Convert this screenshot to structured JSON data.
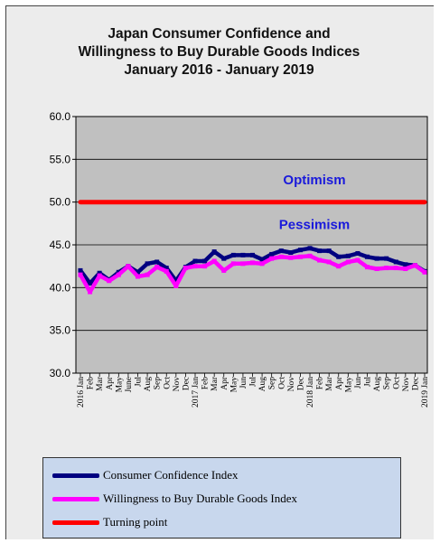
{
  "chart_data": {
    "type": "line",
    "title": [
      "Japan Consumer Confidence and",
      "Willingness to Buy Durable Goods Indices",
      "January 2016 - January 2019"
    ],
    "ylim": [
      30,
      60
    ],
    "yticks": [
      "30.0",
      "35.0",
      "40.0",
      "45.0",
      "50.0",
      "55.0",
      "60.0"
    ],
    "grid": true,
    "legend_position": "bottom",
    "x": [
      "2016 Jan",
      "Feb",
      "Mar",
      "Apr",
      "May",
      "June",
      "Jul",
      "Aug",
      "Sep",
      "Oct",
      "Nov",
      "Dec",
      "2017 Jan",
      "Feb",
      "Mar",
      "Apr",
      "May",
      "Jun",
      "Jul",
      "Aug",
      "Sep",
      "Oct",
      "Nov",
      "Dec",
      "2018 Jan",
      "Feb",
      "Mar",
      "Apr",
      "May",
      "Jun",
      "Jul",
      "Aug",
      "Sep",
      "Oct",
      "Nov",
      "Dec",
      "2019 Jan"
    ],
    "series": [
      {
        "name": "Consumer Confidence Index",
        "color": "#000080",
        "values": [
          42.0,
          40.5,
          41.7,
          40.9,
          41.8,
          42.5,
          41.8,
          42.8,
          43.0,
          42.3,
          40.8,
          42.4,
          43.1,
          43.1,
          44.2,
          43.4,
          43.8,
          43.8,
          43.8,
          43.3,
          43.9,
          44.3,
          44.1,
          44.4,
          44.6,
          44.3,
          44.3,
          43.6,
          43.7,
          44.0,
          43.6,
          43.4,
          43.4,
          43.0,
          42.7,
          42.6,
          41.9
        ]
      },
      {
        "name": "Willingness to Buy Durable Goods Index",
        "color": "#ff00ff",
        "values": [
          41.5,
          39.5,
          41.4,
          40.8,
          41.5,
          42.5,
          41.3,
          41.5,
          42.4,
          41.9,
          40.2,
          42.3,
          42.5,
          42.5,
          43.1,
          42.0,
          42.8,
          42.8,
          42.9,
          42.8,
          43.4,
          43.6,
          43.5,
          43.6,
          43.7,
          43.2,
          43.0,
          42.5,
          43.0,
          43.2,
          42.4,
          42.2,
          42.3,
          42.3,
          42.2,
          42.6,
          41.8
        ]
      },
      {
        "name": "Turning point",
        "color": "#ff0000",
        "values": [
          50,
          50,
          50,
          50,
          50,
          50,
          50,
          50,
          50,
          50,
          50,
          50,
          50,
          50,
          50,
          50,
          50,
          50,
          50,
          50,
          50,
          50,
          50,
          50,
          50,
          50,
          50,
          50,
          50,
          50,
          50,
          50,
          50,
          50,
          50,
          50,
          50
        ]
      }
    ],
    "annotations": [
      {
        "text": "Optimism",
        "x": "Jan 2018 area",
        "y": 52.6
      },
      {
        "text": "Pessimism",
        "x": "Jan 2018 area",
        "y": 47.4
      }
    ]
  }
}
